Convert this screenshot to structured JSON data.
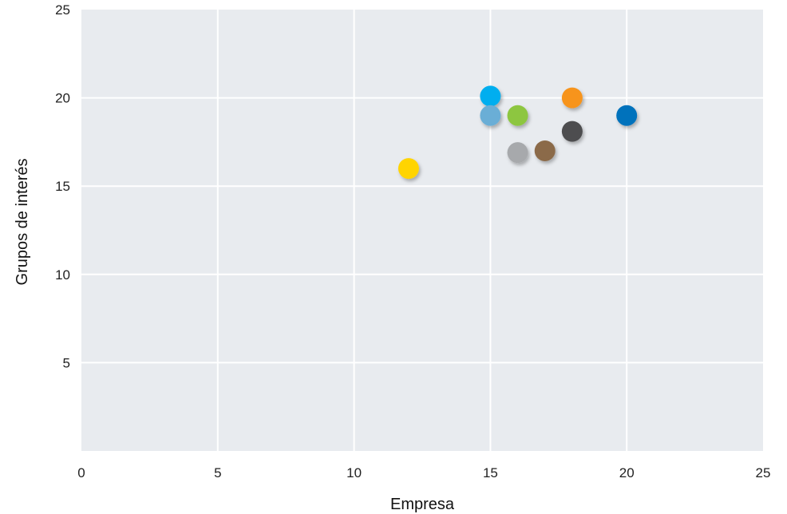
{
  "chart_data": {
    "type": "scatter",
    "title": "",
    "xlabel": "Empresa",
    "ylabel": "Grupos de interés",
    "xlim": [
      0,
      25
    ],
    "ylim": [
      0,
      25
    ],
    "xticks": [
      "0",
      "5",
      "10",
      "15",
      "20",
      "25"
    ],
    "yticks": [
      "5",
      "10",
      "15",
      "20",
      "25"
    ],
    "grid": true,
    "background": "#e8ebef",
    "points": [
      {
        "x": 12,
        "y": 16,
        "color": "#ffd400"
      },
      {
        "x": 15,
        "y": 20.1,
        "color": "#00aeef"
      },
      {
        "x": 15,
        "y": 19,
        "color": "#6baed6"
      },
      {
        "x": 16,
        "y": 19,
        "color": "#8dc63f"
      },
      {
        "x": 16,
        "y": 16.9,
        "color": "#a7a9ac"
      },
      {
        "x": 17,
        "y": 17,
        "color": "#8b6a4a"
      },
      {
        "x": 18,
        "y": 20,
        "color": "#f7941d"
      },
      {
        "x": 18,
        "y": 18.1,
        "color": "#4d4d4f"
      },
      {
        "x": 20,
        "y": 19,
        "color": "#0072bc"
      }
    ]
  }
}
